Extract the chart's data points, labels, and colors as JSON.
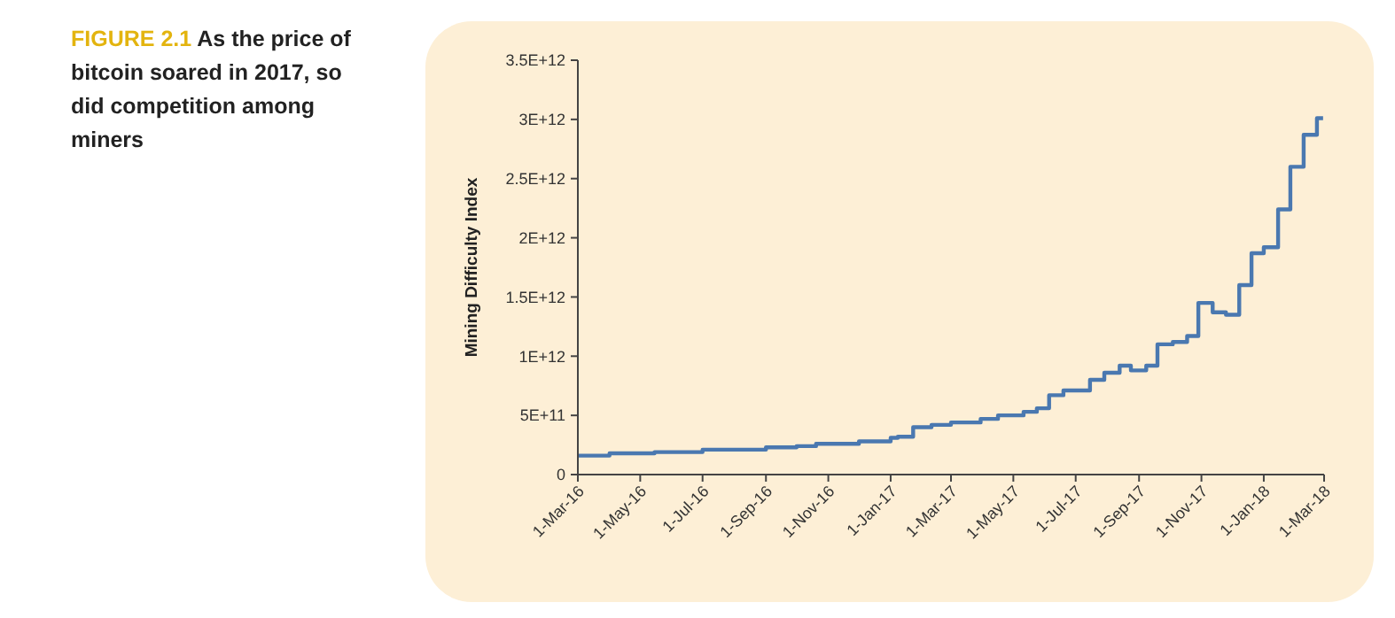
{
  "chart_data": {
    "type": "step",
    "title": "FIGURE 2.1 As the price of bitcoin soared in 2017, so did competition among miners",
    "ylabel": "Mining Difficulty Index",
    "x": [
      "2016-03-01",
      "2016-04-01",
      "2016-05-15",
      "2016-07-01",
      "2016-09-01",
      "2016-10-01",
      "2016-10-20",
      "2016-12-01",
      "2017-01-01",
      "2017-01-08",
      "2017-01-23",
      "2017-02-10",
      "2017-03-01",
      "2017-03-30",
      "2017-04-16",
      "2017-05-11",
      "2017-05-24",
      "2017-06-05",
      "2017-06-19",
      "2017-07-15",
      "2017-07-29",
      "2017-08-13",
      "2017-08-24",
      "2017-09-08",
      "2017-09-19",
      "2017-10-04",
      "2017-10-18",
      "2017-10-29",
      "2017-11-12",
      "2017-11-25",
      "2017-12-08",
      "2017-12-20",
      "2018-01-01",
      "2018-01-15",
      "2018-01-27",
      "2018-02-09",
      "2018-02-22",
      "2018-02-28"
    ],
    "series": [
      {
        "color": "#4a78b0",
        "values": [
          160000000000,
          180000000000,
          190000000000,
          210000000000,
          230000000000,
          240000000000,
          260000000000,
          280000000000,
          310000000000,
          320000000000,
          400000000000,
          420000000000,
          440000000000,
          470000000000,
          500000000000,
          530000000000,
          560000000000,
          670000000000,
          710000000000,
          800000000000,
          860000000000,
          920000000000,
          880000000000,
          920000000000,
          1100000000000,
          1120000000000,
          1170000000000,
          1450000000000,
          1370000000000,
          1350000000000,
          1600000000000,
          1870000000000,
          1920000000000,
          2240000000000,
          2600000000000,
          2870000000000,
          3010000000000,
          3010000000000
        ]
      }
    ],
    "xlim": [
      "2016-03-01",
      "2018-03-01"
    ],
    "xticks": [
      {
        "value": "2016-03-01",
        "label": "1-Mar-16"
      },
      {
        "value": "2016-05-01",
        "label": "1-May-16"
      },
      {
        "value": "2016-07-01",
        "label": "1-Jul-16"
      },
      {
        "value": "2016-09-01",
        "label": "1-Sep-16"
      },
      {
        "value": "2016-11-01",
        "label": "1-Nov-16"
      },
      {
        "value": "2017-01-01",
        "label": "1-Jan-17"
      },
      {
        "value": "2017-03-01",
        "label": "1-Mar-17"
      },
      {
        "value": "2017-05-01",
        "label": "1-May-17"
      },
      {
        "value": "2017-07-01",
        "label": "1-Jul-17"
      },
      {
        "value": "2017-09-01",
        "label": "1-Sep-17"
      },
      {
        "value": "2017-11-01",
        "label": "1-Nov-17"
      },
      {
        "value": "2018-01-01",
        "label": "1-Jan-18"
      },
      {
        "value": "2018-03-01",
        "label": "1-Mar-18"
      }
    ],
    "ylim": [
      0,
      3500000000000
    ],
    "yticks": [
      0,
      {
        "value": 500000000000,
        "label": "5E+11"
      },
      {
        "value": 1000000000000,
        "label": "1E+12"
      },
      {
        "value": 1500000000000,
        "label": "1.5E+12"
      },
      {
        "value": 2000000000000,
        "label": "2E+12"
      },
      {
        "value": 2500000000000,
        "label": "2.5E+12"
      },
      {
        "value": 3000000000000,
        "label": "3E+12"
      },
      {
        "value": 3500000000000,
        "label": "3.5E+12"
      }
    ],
    "grid": false
  }
}
